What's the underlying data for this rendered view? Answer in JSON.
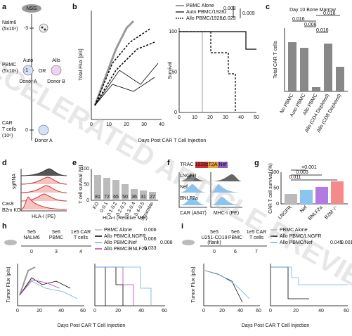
{
  "panel_labels": [
    "a",
    "b",
    "c",
    "d",
    "e",
    "f",
    "g",
    "h",
    "i"
  ],
  "watermark": "ACCELERATED ARTICLE PREVIEW",
  "a": {
    "mouse": "NSG",
    "steps": [
      {
        "day": -3,
        "label": "Nalm6",
        "dose": "(5x10⁶)"
      },
      {
        "day": -1,
        "label": "PBMC",
        "dose": "(5x10⁶)"
      },
      {
        "day": 0,
        "label": "CAR",
        "label2": "T cells",
        "dose": "(10⁶)"
      }
    ],
    "auto": "Auto",
    "allo": "Allo",
    "or": "OR",
    "donor_a": "Donor A",
    "donor_b": "Donor B",
    "car_donor": "Donor A"
  },
  "b": {
    "ylabel": "Total Flux [p/s]",
    "xlabel": "Days Post CAR T Cell Injection",
    "survival_label": "Survival",
    "legend": [
      "PBMC Alone",
      "Auto PBMC/1928z",
      "Allo PBMC/1928z"
    ],
    "p_values": [
      0.009,
      0.023,
      0.009
    ],
    "xticks": [
      0,
      10,
      20,
      30,
      40
    ],
    "surv_xticks": [
      0,
      10,
      20,
      30,
      40,
      50
    ],
    "surv_yticks": [
      0,
      50,
      100
    ]
  },
  "c": {
    "title": "Day 10 Bone Marrow",
    "ylabel": "Total CAR T cells",
    "categories": [
      "No PBMC",
      "Auto PBMC",
      "Allo PBMC",
      "Allo (CD4 Depleted)",
      "Allo (CD8 Depleted)"
    ],
    "p_values": [
      0.016,
      0.008,
      0.016,
      0.016
    ]
  },
  "d": {
    "sgrna": "sgRNA",
    "cas9": "Cas9",
    "b2m": "B2m KO",
    "xlabel": "HLA-I (PE)"
  },
  "e": {
    "ylabel": "T cell survival (%)",
    "xlabel": "HLA-I (Relative MFI)",
    "yticks": [
      0,
      50,
      100
    ],
    "categories": [
      "KO",
      "0-0.1",
      "0.1-0.2",
      "0.2-0.3",
      "0.3-0.4",
      "0.4-0.5",
      "Scramble"
    ],
    "values": [
      81,
      72,
      65,
      50,
      36,
      31,
      27
    ]
  },
  "f": {
    "construct": [
      "TRAC",
      "1928z",
      "T2A",
      "Nef"
    ],
    "rows": [
      "LNGFR",
      "Nef",
      "BNLF2a"
    ],
    "xlabels": [
      "CAR (A647)",
      "MHC-I (PE)"
    ]
  },
  "g": {
    "ylabel": "CAR T cell survival (%)",
    "yticks": [
      0,
      50,
      100
    ],
    "categories": [
      "LNGFR",
      "Nef",
      "BNLF2a",
      "B2M⁻/⁻"
    ],
    "p_values": [
      "<0.001",
      0.003,
      0.011
    ]
  },
  "h": {
    "steps": [
      {
        "dose": "5e5",
        "label": "NALM6",
        "day": 0
      },
      {
        "dose": "5e6",
        "label": "PBMC",
        "day": 3
      },
      {
        "dose": "1e5 CAR",
        "label": "T cells",
        "day": 4
      }
    ],
    "legend": [
      "PBMC Alone",
      "Allo PBMC/LNGFR",
      "Allo PBMC/Nef",
      "Allo PBMC/BNLF2a"
    ],
    "p_values": [
      0.006,
      0.006,
      0.033,
      0.008
    ],
    "ylabel": "Tumor Flux (p/s)",
    "xlabel": "Days Post CAR T Cell Injection",
    "xticks": [
      0,
      20,
      40,
      60
    ]
  },
  "i": {
    "steps": [
      {
        "dose": "5e5",
        "label": "U251-CD19",
        "label2": "(flank)",
        "day": 0
      },
      {
        "dose": "5e6",
        "label": "PBMC",
        "day": 6
      },
      {
        "dose": "1e5 CAR",
        "label": "T cells",
        "day": 7
      }
    ],
    "legend": [
      "PBMC Alone",
      "Allo PBMC/LNGFR",
      "Allo PBMC/Nef"
    ],
    "p_values": [
      0.045,
      0.001
    ],
    "ylabel": "Tumor Flux (p/s)",
    "xlabel": "Days Post CAR T Cell Injection",
    "xticks": [
      0,
      20,
      40,
      60
    ]
  }
}
